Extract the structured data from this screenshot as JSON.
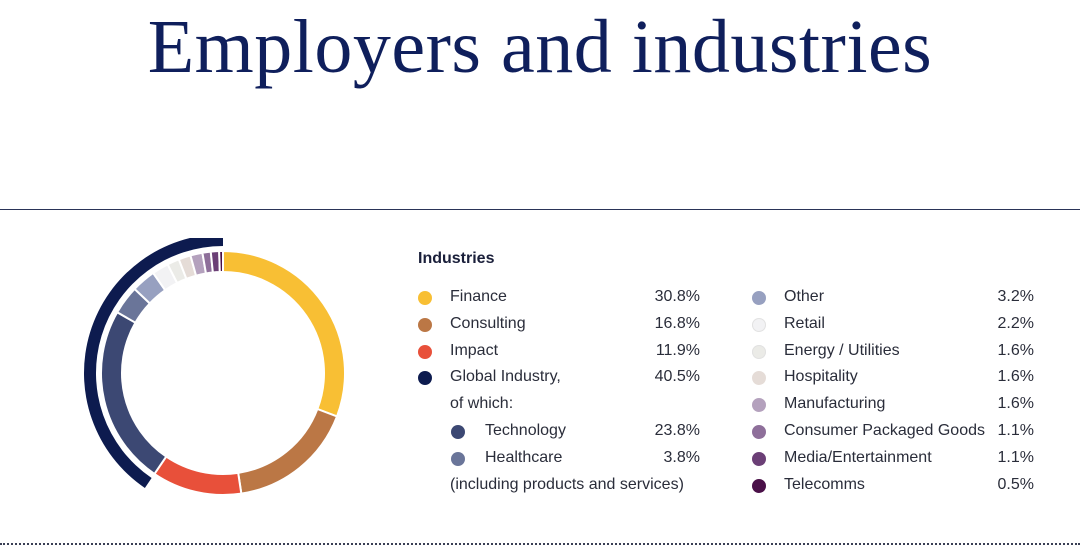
{
  "page": {
    "title": "Employers and industries"
  },
  "legend": {
    "heading": "Industries"
  },
  "left_items": [
    {
      "label": "Finance",
      "value": "30.8%",
      "color": "#f8bf34",
      "kind": "main"
    },
    {
      "label": "Consulting",
      "value": "16.8%",
      "color": "#bb7745",
      "kind": "main"
    },
    {
      "label": "Impact",
      "value": "11.9%",
      "color": "#e8503a",
      "kind": "main"
    },
    {
      "label": "Global Industry,",
      "value": "40.5%",
      "color": "#0d1b4f",
      "kind": "main"
    },
    {
      "label": "of which:",
      "value": "",
      "color": "",
      "kind": "note"
    },
    {
      "label": "Technology",
      "value": "23.8%",
      "color": "#3c4873",
      "kind": "sub"
    },
    {
      "label": "Healthcare",
      "value": "3.8%",
      "color": "#6a7599",
      "kind": "sub"
    },
    {
      "label": "(including products and services)",
      "value": "",
      "color": "",
      "kind": "note"
    }
  ],
  "right_items": [
    {
      "label": "Other",
      "value": "3.2%",
      "color": "#97a0c0"
    },
    {
      "label": "Retail",
      "value": "2.2%",
      "color": "#f2f2f4"
    },
    {
      "label": "Energy / Utilities",
      "value": "1.6%",
      "color": "#ebebe7"
    },
    {
      "label": "Hospitality",
      "value": "1.6%",
      "color": "#e5dcd7"
    },
    {
      "label": "Manufacturing",
      "value": "1.6%",
      "color": "#b4a1bd"
    },
    {
      "label": "Consumer Packaged Goods",
      "value": "1.1%",
      "color": "#8e6f9a"
    },
    {
      "label": "Media/Entertainment",
      "value": "1.1%",
      "color": "#6b3f76"
    },
    {
      "label": "Telecomms",
      "value": "0.5%",
      "color": "#4a1048"
    }
  ],
  "chart_data": {
    "type": "pie",
    "variant": "donut",
    "categories": [
      "Finance",
      "Consulting",
      "Impact",
      "Technology",
      "Healthcare",
      "Other",
      "Retail",
      "Energy / Utilities",
      "Hospitality",
      "Manufacturing",
      "Consumer Packaged Goods",
      "Media/Entertainment",
      "Telecomms"
    ],
    "values": [
      30.8,
      16.8,
      11.9,
      23.8,
      3.8,
      3.2,
      2.2,
      1.6,
      1.6,
      1.6,
      1.1,
      1.1,
      0.5
    ],
    "colors": [
      "#f8bf34",
      "#bb7745",
      "#e8503a",
      "#3c4873",
      "#6a7599",
      "#97a0c0",
      "#f2f2f4",
      "#ebebe7",
      "#e5dcd7",
      "#b4a1bd",
      "#8e6f9a",
      "#6b3f76",
      "#4a1048"
    ],
    "group_arc": {
      "label": "Global Industry",
      "value": 40.5,
      "color": "#0d1b4f"
    },
    "start": "top",
    "direction": "clockwise",
    "legend": "right"
  }
}
